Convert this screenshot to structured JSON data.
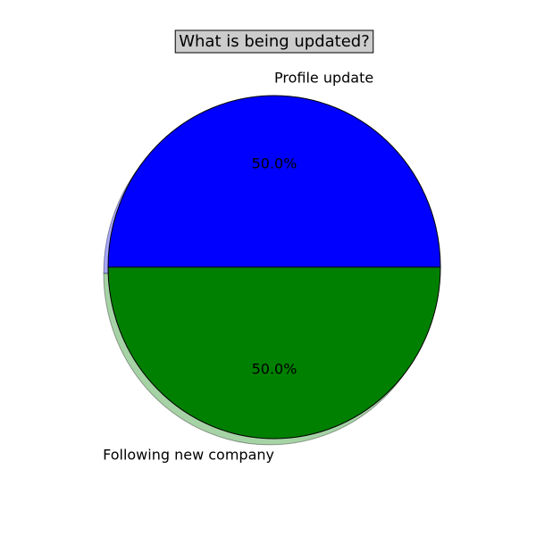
{
  "chart_data": {
    "type": "pie",
    "title": "What is being updated?",
    "slices": [
      {
        "label": "Profile update",
        "value": 50.0,
        "percent_label": "50.0%",
        "color": "#0000ff"
      },
      {
        "label": "Following new company",
        "value": 50.0,
        "percent_label": "50.0%",
        "color": "#008000"
      }
    ],
    "start_angle_deg": 0,
    "direction": "counterclockwise",
    "shadow": true,
    "title_box_color": "#cccccc",
    "edge_color": "#000000"
  }
}
